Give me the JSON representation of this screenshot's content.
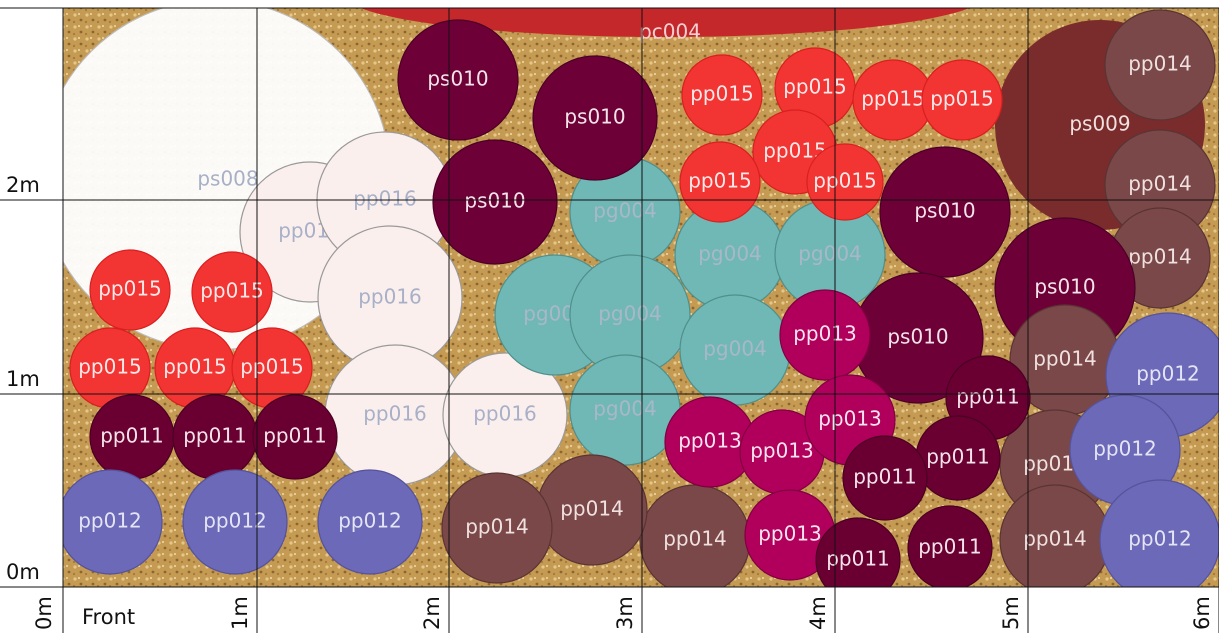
{
  "plants": [
    "ps008",
    "pc004",
    "pp016",
    "pp016",
    "pp016",
    "pp016",
    "pp016",
    "pg004",
    "pg004",
    "pg004",
    "pg004",
    "pg004",
    "pg004",
    "pg004",
    "ps009",
    "pp014",
    "pp014",
    "pp014",
    "ps010",
    "ps010",
    "ps010",
    "ps010",
    "ps010",
    "ps010",
    "pp015",
    "pp015",
    "pp015",
    "pp015",
    "pp015",
    "pp015",
    "pp015",
    "pp015",
    "pp015",
    "pp015",
    "pp015",
    "pp015",
    "pp014",
    "pp014",
    "pp014",
    "pp014",
    "pp014",
    "pp014",
    "pp013",
    "pp013",
    "pp013",
    "pp013",
    "pp013",
    "pp011",
    "pp011",
    "pp011",
    "pp011",
    "pp011",
    "pp011",
    "pp011",
    "pp011",
    "pp012",
    "pp012",
    "pp012",
    "pp012",
    "pp012",
    "pp012"
  ],
  "axes": {
    "y": [
      "2m",
      "1m",
      "0m"
    ],
    "x": [
      "0m",
      "1m",
      "2m",
      "3m",
      "4m",
      "5m",
      "6m"
    ],
    "front": "Front"
  }
}
